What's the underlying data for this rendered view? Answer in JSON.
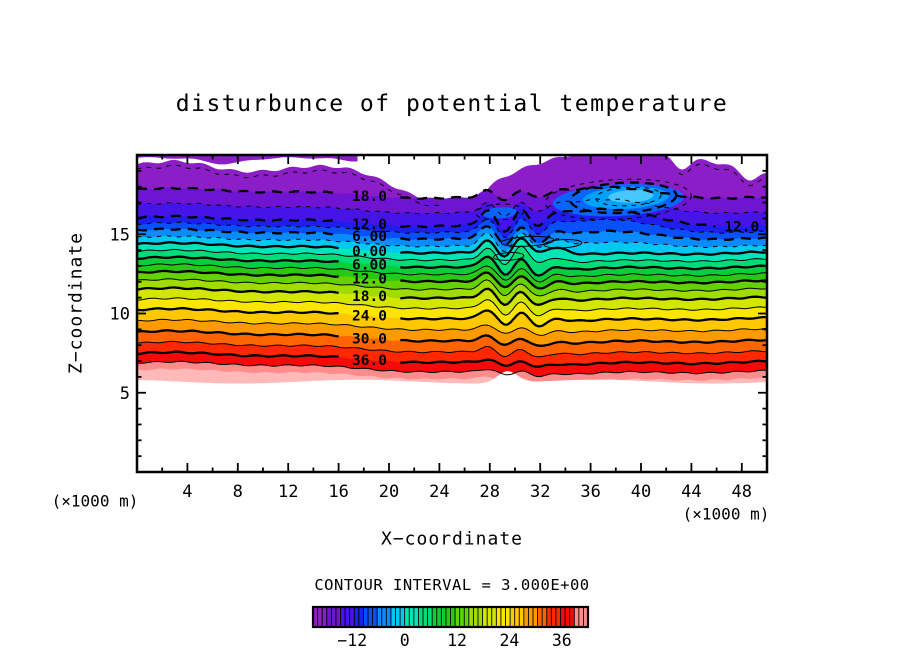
{
  "title": "disturbunce of potential temperature",
  "axes": {
    "x_label": "X−coordinate",
    "z_label": "Z−coordinate",
    "x_unit_left": "(×1000 m)",
    "x_unit_right": "(×1000 m)",
    "x_tick_labels": [
      "4",
      "8",
      "12",
      "16",
      "20",
      "24",
      "28",
      "32",
      "36",
      "40",
      "44",
      "48"
    ],
    "x_tick_values": [
      4,
      8,
      12,
      16,
      20,
      24,
      28,
      32,
      36,
      40,
      44,
      48
    ],
    "z_tick_labels": [
      "5",
      "10",
      "15"
    ],
    "z_tick_values": [
      5,
      10,
      15
    ]
  },
  "caption": "CONTOUR INTERVAL = 3.000E+00",
  "colorbar": {
    "tick_labels": [
      "−12",
      "0",
      "12",
      "24",
      "36"
    ],
    "tick_values": [
      -12,
      0,
      12,
      24,
      36
    ],
    "range": [
      -21,
      42
    ],
    "segments": 60
  },
  "contour_labels": {
    "center_column": [
      {
        "level": -18,
        "text": "18.0"
      },
      {
        "level": -12,
        "text": "12.0"
      },
      {
        "level": -6,
        "text": "6.00"
      },
      {
        "level": 0,
        "text": "0.00"
      },
      {
        "level": 6,
        "text": "6.00"
      },
      {
        "level": 12,
        "text": "12.0"
      },
      {
        "level": 18,
        "text": "18.0"
      },
      {
        "level": 24,
        "text": "24.0"
      },
      {
        "level": 30,
        "text": "30.0"
      },
      {
        "level": 36,
        "text": "36.0"
      }
    ],
    "right_side": [
      {
        "level": -12,
        "text": "12.0"
      }
    ]
  },
  "chart_data": {
    "type": "heatmap",
    "subtype": "filled_contour",
    "title": "disturbunce of potential temperature",
    "xlabel": "X−coordinate (×1000 m)",
    "ylabel": "Z−coordinate (×1000 m)",
    "x_range": [
      0,
      50
    ],
    "z_range": [
      0,
      20
    ],
    "contour_interval": 3.0,
    "contour_levels": [
      -18,
      -15,
      -12,
      -9,
      -6,
      -3,
      0,
      3,
      6,
      9,
      12,
      15,
      18,
      21,
      24,
      27,
      30,
      33,
      36,
      39
    ],
    "labeled_levels": [
      -18,
      -12,
      -6,
      0,
      6,
      12,
      18,
      24,
      30,
      36
    ],
    "negative_contours_style": "dashed",
    "positive_contours_style": "solid",
    "fill_value_range": [
      -21,
      42
    ],
    "palette": [
      "#8C1EC8",
      "#6E14D2",
      "#4614E6",
      "#1E1EF0",
      "#0A50FA",
      "#0A8CFF",
      "#00C8F0",
      "#00E6B9",
      "#00DC78",
      "#0ACD3C",
      "#28C814",
      "#64D200",
      "#A0DC00",
      "#D2E600",
      "#FAE600",
      "#FFC800",
      "#FF9B00",
      "#FF6400",
      "#FF2800",
      "#F50A0A",
      "#FF8C8C",
      "#FFB9B9"
    ],
    "colorbar_ticks": [
      -12,
      0,
      12,
      24,
      36
    ]
  }
}
